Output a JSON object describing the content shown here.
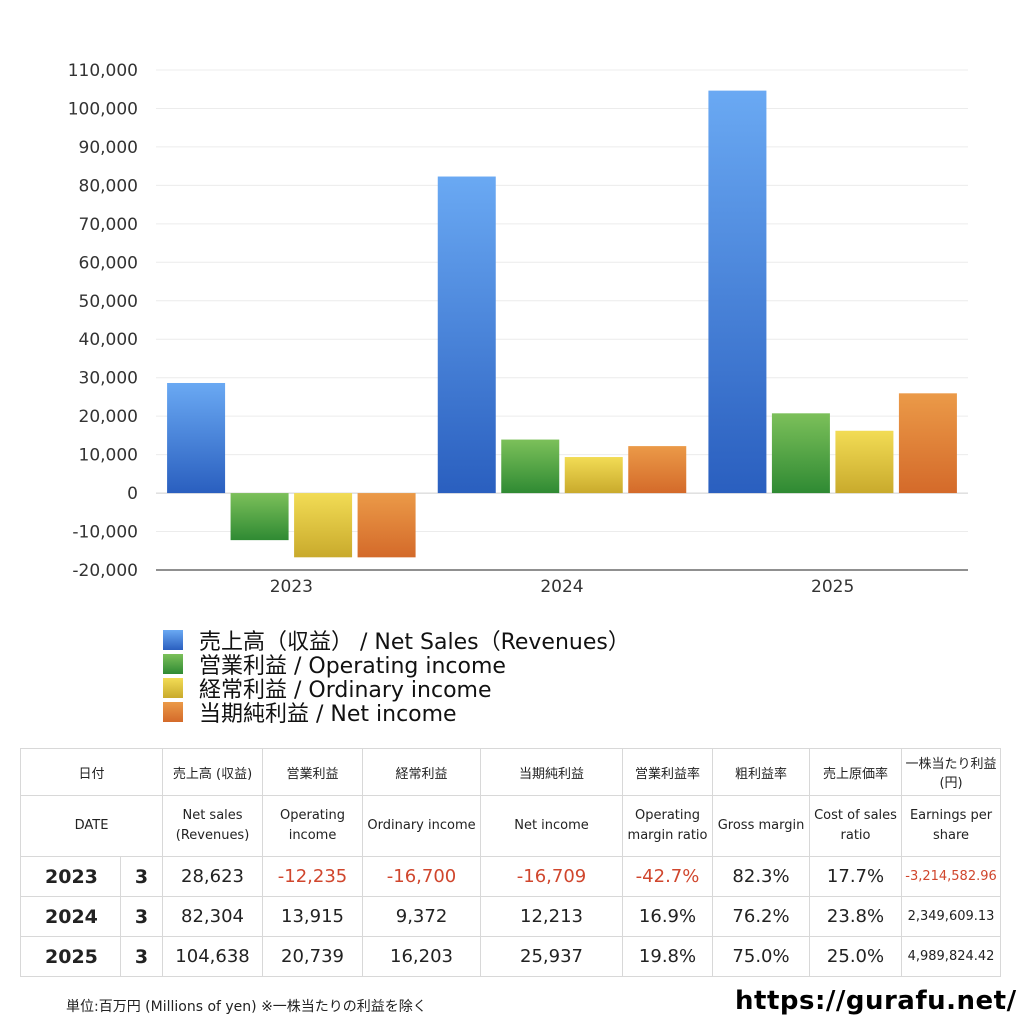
{
  "chart_data": {
    "type": "bar",
    "categories": [
      "2023",
      "2024",
      "2025"
    ],
    "series": [
      {
        "name": "売上高（収益） / Net Sales（Revenues）",
        "values": [
          28623,
          82304,
          104638
        ]
      },
      {
        "name": "営業利益 / Operating income",
        "values": [
          -12235,
          13915,
          20739
        ]
      },
      {
        "name": "経常利益 / Ordinary income",
        "values": [
          -16700,
          9372,
          16203
        ]
      },
      {
        "name": "当期純利益 / Net income",
        "values": [
          -16709,
          12213,
          25937
        ]
      }
    ],
    "ylim": [
      -20000,
      110000
    ],
    "yticks": [
      -20000,
      -10000,
      0,
      10000,
      20000,
      30000,
      40000,
      50000,
      60000,
      70000,
      80000,
      90000,
      100000,
      110000
    ],
    "ytick_labels": [
      "-20,000",
      "-10,000",
      "0",
      "10,000",
      "20,000",
      "30,000",
      "40,000",
      "50,000",
      "60,000",
      "70,000",
      "80,000",
      "90,000",
      "100,000",
      "110,000"
    ],
    "grid": true,
    "title": "",
    "xlabel": "",
    "ylabel": ""
  },
  "colors": {
    "net_sales": [
      "#6aa9f3",
      "#2a5fbf"
    ],
    "operating": [
      "#7cc05a",
      "#2f8a33"
    ],
    "ordinary": [
      "#f2dc55",
      "#c9aa2c"
    ],
    "net_income": [
      "#eb9a48",
      "#d46a2a"
    ],
    "negative_text": "#d0462d"
  },
  "legend": [
    {
      "label": "売上高（収益） / Net Sales（Revenues）"
    },
    {
      "label": "営業利益 / Operating income"
    },
    {
      "label": "経常利益 / Ordinary income"
    },
    {
      "label": "当期純利益 / Net income"
    }
  ],
  "table": {
    "header_jp": [
      "日付",
      "売上高 (収益)",
      "営業利益",
      "経常利益",
      "当期純利益",
      "営業利益率",
      "粗利益率",
      "売上原価率",
      "一株当たり利益(円)"
    ],
    "header_en": [
      "DATE",
      "Net sales (Revenues)",
      "Operating income",
      "Ordinary income",
      "Net income",
      "Operating margin ratio",
      "Gross margin",
      "Cost of sales ratio",
      "Earnings per share"
    ],
    "rows": [
      {
        "year": "2023",
        "month": "3",
        "net_sales": "28,623",
        "operating": "-12,235",
        "ordinary": "-16,700",
        "net_income": "-16,709",
        "op_margin": "-42.7%",
        "gross_margin": "82.3%",
        "cost_ratio": "17.7%",
        "eps": "-3,214,582.96"
      },
      {
        "year": "2024",
        "month": "3",
        "net_sales": "82,304",
        "operating": "13,915",
        "ordinary": "9,372",
        "net_income": "12,213",
        "op_margin": "16.9%",
        "gross_margin": "76.2%",
        "cost_ratio": "23.8%",
        "eps": "2,349,609.13"
      },
      {
        "year": "2025",
        "month": "3",
        "net_sales": "104,638",
        "operating": "20,739",
        "ordinary": "16,203",
        "net_income": "25,937",
        "op_margin": "19.8%",
        "gross_margin": "75.0%",
        "cost_ratio": "25.0%",
        "eps": "4,989,824.42"
      }
    ]
  },
  "footer": {
    "note": "単位:百万円 (Millions of yen) ※一株当たりの利益を除く",
    "url": "https://gurafu.net/"
  }
}
